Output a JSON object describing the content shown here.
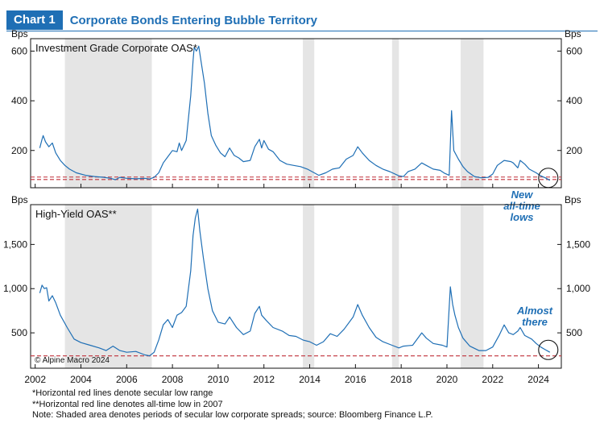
{
  "header": {
    "badge": "Chart 1",
    "title": "Corporate Bonds Entering Bubble Territory"
  },
  "copyright": "© Alpine Macro 2024",
  "footnotes": [
    "*Horizontal red lines denote secular low range",
    "**Horizontal red line denotes all-time low in 2007",
    "Note: Shaded area denotes periods of secular low corporate spreads; source: Bloomberg Finance L.P."
  ],
  "colors": {
    "series": "#1f6fb5",
    "reference": "#c0303a",
    "shade": "#e5e5e5",
    "brand": "#1f6fb5"
  },
  "chart_data": [
    {
      "type": "line",
      "title": "Investment Grade Corporate OAS*",
      "ylabel": "Bps",
      "xlim": [
        2001.8,
        2025.0
      ],
      "ylim": [
        50,
        650
      ],
      "yticks": [
        200,
        400,
        600
      ],
      "ytick_labels": [
        "200",
        "400",
        "600"
      ],
      "xticks": [
        2002,
        2004,
        2006,
        2008,
        2010,
        2012,
        2014,
        2016,
        2018,
        2020,
        2022,
        2024
      ],
      "shaded_periods": [
        [
          2003.3,
          2007.1
        ],
        [
          2013.7,
          2014.2
        ],
        [
          2017.6,
          2017.9
        ],
        [
          2020.6,
          2021.6
        ]
      ],
      "reference_lines": [
        93,
        83
      ],
      "annotation": {
        "text": [
          "New",
          "all-time",
          "lows"
        ],
        "x": 2024.4,
        "y": 85
      },
      "series": [
        {
          "points": [
            [
              2002.2,
              210
            ],
            [
              2002.3,
              245
            ],
            [
              2002.35,
              260
            ],
            [
              2002.45,
              235
            ],
            [
              2002.6,
              215
            ],
            [
              2002.75,
              230
            ],
            [
              2002.9,
              190
            ],
            [
              2003.1,
              160
            ],
            [
              2003.3,
              140
            ],
            [
              2003.5,
              125
            ],
            [
              2003.8,
              110
            ],
            [
              2004.2,
              100
            ],
            [
              2004.6,
              95
            ],
            [
              2005.0,
              92
            ],
            [
              2005.3,
              88
            ],
            [
              2005.5,
              82
            ],
            [
              2005.7,
              92
            ],
            [
              2006.0,
              88
            ],
            [
              2006.4,
              86
            ],
            [
              2006.8,
              88
            ],
            [
              2007.0,
              85
            ],
            [
              2007.2,
              92
            ],
            [
              2007.4,
              110
            ],
            [
              2007.6,
              150
            ],
            [
              2007.8,
              175
            ],
            [
              2008.0,
              200
            ],
            [
              2008.2,
              195
            ],
            [
              2008.3,
              230
            ],
            [
              2008.4,
              200
            ],
            [
              2008.6,
              240
            ],
            [
              2008.8,
              420
            ],
            [
              2008.9,
              560
            ],
            [
              2008.95,
              615
            ],
            [
              2009.05,
              600
            ],
            [
              2009.15,
              620
            ],
            [
              2009.25,
              560
            ],
            [
              2009.4,
              470
            ],
            [
              2009.55,
              350
            ],
            [
              2009.7,
              260
            ],
            [
              2009.9,
              220
            ],
            [
              2010.1,
              190
            ],
            [
              2010.3,
              175
            ],
            [
              2010.5,
              210
            ],
            [
              2010.7,
              180
            ],
            [
              2010.9,
              170
            ],
            [
              2011.1,
              155
            ],
            [
              2011.4,
              160
            ],
            [
              2011.6,
              215
            ],
            [
              2011.8,
              245
            ],
            [
              2011.9,
              210
            ],
            [
              2012.0,
              240
            ],
            [
              2012.2,
              205
            ],
            [
              2012.4,
              195
            ],
            [
              2012.7,
              160
            ],
            [
              2013.0,
              145
            ],
            [
              2013.3,
              140
            ],
            [
              2013.6,
              135
            ],
            [
              2013.9,
              125
            ],
            [
              2014.2,
              110
            ],
            [
              2014.4,
              100
            ],
            [
              2014.7,
              110
            ],
            [
              2015.0,
              125
            ],
            [
              2015.3,
              130
            ],
            [
              2015.6,
              165
            ],
            [
              2015.9,
              180
            ],
            [
              2016.1,
              215
            ],
            [
              2016.3,
              190
            ],
            [
              2016.6,
              160
            ],
            [
              2016.9,
              140
            ],
            [
              2017.2,
              125
            ],
            [
              2017.5,
              115
            ],
            [
              2017.9,
              98
            ],
            [
              2018.1,
              95
            ],
            [
              2018.3,
              115
            ],
            [
              2018.6,
              125
            ],
            [
              2018.9,
              150
            ],
            [
              2019.1,
              140
            ],
            [
              2019.4,
              125
            ],
            [
              2019.7,
              120
            ],
            [
              2019.9,
              108
            ],
            [
              2020.1,
              100
            ],
            [
              2020.2,
              360
            ],
            [
              2020.25,
              280
            ],
            [
              2020.3,
              200
            ],
            [
              2020.5,
              165
            ],
            [
              2020.7,
              135
            ],
            [
              2020.9,
              115
            ],
            [
              2021.2,
              95
            ],
            [
              2021.5,
              90
            ],
            [
              2021.8,
              92
            ],
            [
              2022.0,
              105
            ],
            [
              2022.2,
              140
            ],
            [
              2022.5,
              160
            ],
            [
              2022.8,
              155
            ],
            [
              2022.9,
              150
            ],
            [
              2023.1,
              130
            ],
            [
              2023.2,
              160
            ],
            [
              2023.4,
              145
            ],
            [
              2023.6,
              125
            ],
            [
              2023.9,
              110
            ],
            [
              2024.1,
              98
            ],
            [
              2024.3,
              90
            ],
            [
              2024.5,
              80
            ]
          ]
        }
      ]
    },
    {
      "type": "line",
      "title": "High-Yield OAS**",
      "ylabel": "Bps",
      "xlim": [
        2001.8,
        2025.0
      ],
      "ylim": [
        100,
        1950
      ],
      "yticks": [
        500,
        1000,
        1500
      ],
      "ytick_labels": [
        "500",
        "1,000",
        "1,500"
      ],
      "xticks": [
        2002,
        2004,
        2006,
        2008,
        2010,
        2012,
        2014,
        2016,
        2018,
        2020,
        2022,
        2024
      ],
      "xtick_labels": [
        "2002",
        "2004",
        "2006",
        "2008",
        "2010",
        "2012",
        "2014",
        "2016",
        "2018",
        "2020",
        "2022",
        "2024"
      ],
      "shaded_periods": [
        [
          2003.3,
          2007.1
        ],
        [
          2013.7,
          2014.2
        ],
        [
          2017.6,
          2017.9
        ],
        [
          2020.6,
          2021.6
        ]
      ],
      "reference_lines": [
        240
      ],
      "annotation": {
        "text": [
          "Almost",
          "there"
        ],
        "x": 2024.4,
        "y": 280
      },
      "series": [
        {
          "points": [
            [
              2002.2,
              950
            ],
            [
              2002.3,
              1040
            ],
            [
              2002.4,
              1000
            ],
            [
              2002.5,
              1010
            ],
            [
              2002.6,
              860
            ],
            [
              2002.75,
              920
            ],
            [
              2002.9,
              840
            ],
            [
              2003.1,
              700
            ],
            [
              2003.4,
              560
            ],
            [
              2003.7,
              430
            ],
            [
              2004.0,
              390
            ],
            [
              2004.4,
              360
            ],
            [
              2004.8,
              330
            ],
            [
              2005.1,
              300
            ],
            [
              2005.4,
              350
            ],
            [
              2005.7,
              300
            ],
            [
              2006.0,
              280
            ],
            [
              2006.4,
              290
            ],
            [
              2006.8,
              250
            ],
            [
              2007.0,
              240
            ],
            [
              2007.2,
              280
            ],
            [
              2007.4,
              420
            ],
            [
              2007.6,
              590
            ],
            [
              2007.8,
              650
            ],
            [
              2008.0,
              560
            ],
            [
              2008.2,
              700
            ],
            [
              2008.4,
              730
            ],
            [
              2008.6,
              800
            ],
            [
              2008.8,
              1200
            ],
            [
              2008.9,
              1600
            ],
            [
              2009.0,
              1800
            ],
            [
              2009.1,
              1900
            ],
            [
              2009.2,
              1650
            ],
            [
              2009.35,
              1350
            ],
            [
              2009.55,
              1000
            ],
            [
              2009.75,
              750
            ],
            [
              2010.0,
              620
            ],
            [
              2010.3,
              600
            ],
            [
              2010.5,
              680
            ],
            [
              2010.8,
              560
            ],
            [
              2011.1,
              480
            ],
            [
              2011.4,
              520
            ],
            [
              2011.6,
              720
            ],
            [
              2011.8,
              800
            ],
            [
              2011.9,
              700
            ],
            [
              2012.1,
              640
            ],
            [
              2012.4,
              560
            ],
            [
              2012.8,
              520
            ],
            [
              2013.1,
              470
            ],
            [
              2013.4,
              460
            ],
            [
              2013.7,
              420
            ],
            [
              2014.0,
              400
            ],
            [
              2014.3,
              360
            ],
            [
              2014.6,
              400
            ],
            [
              2014.9,
              490
            ],
            [
              2015.2,
              460
            ],
            [
              2015.5,
              540
            ],
            [
              2015.9,
              680
            ],
            [
              2016.1,
              820
            ],
            [
              2016.3,
              700
            ],
            [
              2016.6,
              560
            ],
            [
              2016.9,
              450
            ],
            [
              2017.2,
              400
            ],
            [
              2017.6,
              360
            ],
            [
              2017.9,
              330
            ],
            [
              2018.1,
              350
            ],
            [
              2018.5,
              360
            ],
            [
              2018.9,
              500
            ],
            [
              2019.1,
              440
            ],
            [
              2019.4,
              380
            ],
            [
              2019.8,
              360
            ],
            [
              2020.0,
              340
            ],
            [
              2020.15,
              1020
            ],
            [
              2020.25,
              820
            ],
            [
              2020.35,
              700
            ],
            [
              2020.5,
              560
            ],
            [
              2020.7,
              440
            ],
            [
              2021.0,
              350
            ],
            [
              2021.4,
              300
            ],
            [
              2021.7,
              300
            ],
            [
              2022.0,
              340
            ],
            [
              2022.3,
              480
            ],
            [
              2022.5,
              590
            ],
            [
              2022.7,
              500
            ],
            [
              2022.9,
              480
            ],
            [
              2023.1,
              520
            ],
            [
              2023.2,
              560
            ],
            [
              2023.4,
              470
            ],
            [
              2023.7,
              430
            ],
            [
              2023.9,
              380
            ],
            [
              2024.1,
              340
            ],
            [
              2024.3,
              310
            ],
            [
              2024.5,
              280
            ]
          ]
        }
      ]
    }
  ]
}
